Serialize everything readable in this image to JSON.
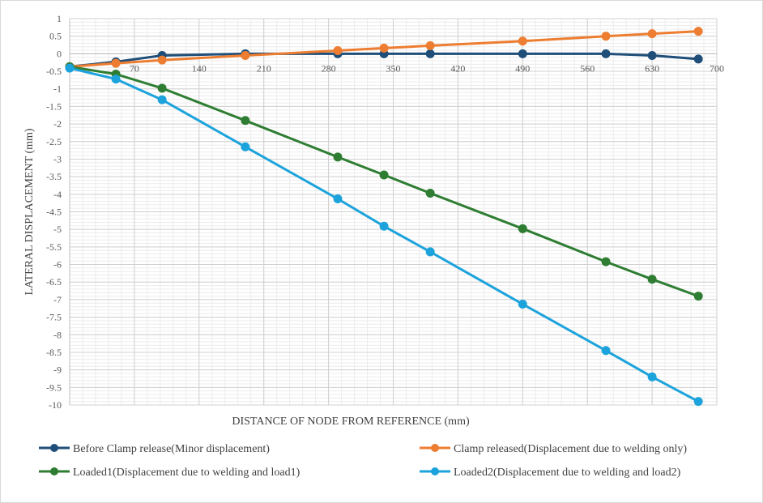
{
  "chart_data": {
    "type": "line",
    "title": "",
    "xlabel": "DISTANCE  OF NODE FROM REFERENCE (mm)",
    "ylabel": "LATERAL  DISPLACEMENT  (mm)",
    "xlim": [
      0,
      700
    ],
    "ylim": [
      -10,
      1
    ],
    "x_ticks": [
      70,
      140,
      210,
      280,
      350,
      420,
      490,
      560,
      630,
      700
    ],
    "y_ticks": [
      1,
      0.5,
      0,
      -0.5,
      -1,
      -1.5,
      -2,
      -2.5,
      -3,
      -3.5,
      -4,
      -4.5,
      -5,
      -5.5,
      -6,
      -6.5,
      -7,
      -7.5,
      -8,
      -8.5,
      -9,
      -9.5,
      -10
    ],
    "grid": true,
    "legend_position": "bottom",
    "series": [
      {
        "name": "Before Clamp release(Minor displacement)",
        "color": "#1F4E79",
        "x": [
          0,
          50,
          100,
          190,
          290,
          340,
          390,
          490,
          580,
          630,
          680
        ],
        "y": [
          -0.37,
          -0.23,
          -0.05,
          0.0,
          0.0,
          0.0,
          0.0,
          0.0,
          0.0,
          -0.05,
          -0.15
        ]
      },
      {
        "name": "Clamp released(Displacement due to welding only)",
        "color": "#ED7D31",
        "x": [
          0,
          50,
          100,
          190,
          290,
          340,
          390,
          490,
          580,
          630,
          680
        ],
        "y": [
          -0.37,
          -0.27,
          -0.18,
          -0.05,
          0.09,
          0.16,
          0.23,
          0.36,
          0.5,
          0.57,
          0.64
        ]
      },
      {
        "name": "Loaded1(Displacement due to welding and load1)",
        "color": "#2E7D32",
        "x": [
          0,
          50,
          100,
          190,
          290,
          340,
          390,
          490,
          580,
          630,
          680
        ],
        "y": [
          -0.37,
          -0.58,
          -0.98,
          -1.9,
          -2.94,
          -3.45,
          -3.97,
          -4.98,
          -5.92,
          -6.42,
          -6.9
        ]
      },
      {
        "name": "Loaded2(Displacement due to welding and load2)",
        "color": "#1CA3DC",
        "x": [
          0,
          50,
          100,
          190,
          290,
          340,
          390,
          490,
          580,
          630,
          680
        ],
        "y": [
          -0.41,
          -0.72,
          -1.31,
          -2.65,
          -4.13,
          -4.91,
          -5.64,
          -7.13,
          -8.45,
          -9.2,
          -9.9
        ]
      }
    ]
  }
}
